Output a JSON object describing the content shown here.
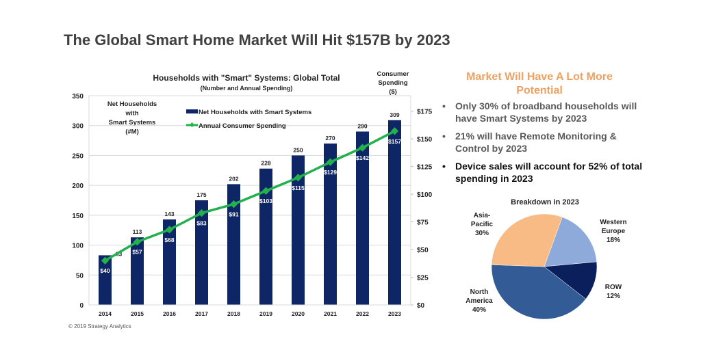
{
  "page": {
    "title": "The Global Smart Home Market Will Hit $157B by 2023",
    "copyright": "© 2019 Strategy Analytics"
  },
  "side_panel": {
    "heading": "Market Will Have A Lot More Potential",
    "bullets": [
      {
        "text": "Only 30% of broadband households will have Smart Systems by 2023",
        "emphasis": false
      },
      {
        "text": "21% will have Remote Monitoring & Control by 2023",
        "emphasis": false
      },
      {
        "text": "Device sales will account for 52% of total spending in 2023",
        "emphasis": true
      }
    ],
    "bullet_glyph": "•"
  },
  "chart_data": [
    {
      "type": "bar",
      "title": "Households with \"Smart\" Systems: Global Total",
      "subtitle": "(Number and Annual Spending)",
      "categories": [
        "2014",
        "2015",
        "2016",
        "2017",
        "2018",
        "2019",
        "2020",
        "2021",
        "2022",
        "2023"
      ],
      "series": [
        {
          "name": "Net Households with Smart Systems",
          "type": "bar",
          "axis": "left",
          "color": "#0e2566",
          "values": [
            83,
            113,
            143,
            175,
            202,
            228,
            250,
            270,
            290,
            309
          ],
          "labels": [
            "83",
            "113",
            "143",
            "175",
            "202",
            "228",
            "250",
            "270",
            "290",
            "309"
          ]
        },
        {
          "name": "Annual Consumer Spending",
          "type": "line",
          "axis": "right",
          "color": "#22b14c",
          "values": [
            40,
            57,
            68,
            83,
            91,
            103,
            115,
            129,
            142,
            157
          ],
          "labels": [
            "$40",
            "$57",
            "$68",
            "$83",
            "$91",
            "$103",
            "$115",
            "$129",
            "$142",
            "$157"
          ]
        }
      ],
      "left_axis": {
        "label_lines": [
          "Net Households",
          "with",
          "Smart Systems",
          "(#M)"
        ],
        "ylim": [
          0,
          350
        ],
        "ticks": [
          0,
          50,
          100,
          150,
          200,
          250,
          300,
          350
        ],
        "tick_labels": [
          "0",
          "50",
          "100",
          "150",
          "200",
          "250",
          "300",
          "350"
        ]
      },
      "right_axis": {
        "label_lines": [
          "Consumer",
          "Spending",
          "($)"
        ],
        "ylim": [
          0,
          189
        ],
        "ticks": [
          0,
          25,
          50,
          75,
          100,
          125,
          150,
          175
        ],
        "tick_labels": [
          "$0",
          "$25",
          "$50",
          "$75",
          "$100",
          "$125",
          "$150",
          "$175"
        ]
      },
      "grid": true,
      "legend_position": "top-center"
    },
    {
      "type": "pie",
      "title": "Breakdown in 2023",
      "slices": [
        {
          "label": "Western Europe",
          "value": 18,
          "display": "18%",
          "color": "#8eaadb"
        },
        {
          "label": "ROW",
          "value": 12,
          "display": "12%",
          "color": "#0a1f5c"
        },
        {
          "label": "North America",
          "value": 40,
          "display": "40%",
          "color": "#335b96"
        },
        {
          "label": "Asia-Pacific",
          "value": 30,
          "display": "30%",
          "color": "#f9bb86"
        }
      ]
    }
  ]
}
